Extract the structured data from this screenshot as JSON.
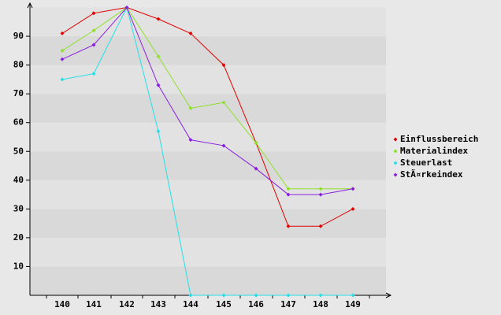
{
  "chart_data": {
    "type": "line",
    "categories": [
      "140",
      "141",
      "142",
      "143",
      "144",
      "145",
      "146",
      "147",
      "148",
      "149"
    ],
    "series": [
      {
        "name": "Einflussbereich",
        "color": "#e00000",
        "values": [
          91,
          98,
          100,
          96,
          91,
          80,
          53,
          24,
          24,
          30
        ]
      },
      {
        "name": "Materialindex",
        "color": "#8ee02a",
        "values": [
          85,
          92,
          100,
          83,
          65,
          67,
          53,
          37,
          37,
          37
        ]
      },
      {
        "name": "Steuerlast",
        "color": "#22e0e8",
        "values": [
          75,
          77,
          100,
          57,
          0,
          0,
          0,
          0,
          0,
          0
        ]
      },
      {
        "name": "StÃ¤rkeindex",
        "color": "#8a1ee0",
        "values": [
          82,
          87,
          100,
          73,
          54,
          52,
          44,
          35,
          35,
          37
        ]
      }
    ],
    "ylim": [
      0,
      100
    ],
    "yticks": [
      10,
      20,
      30,
      40,
      50,
      60,
      70,
      80,
      90
    ],
    "grid": true,
    "legend": "right"
  }
}
